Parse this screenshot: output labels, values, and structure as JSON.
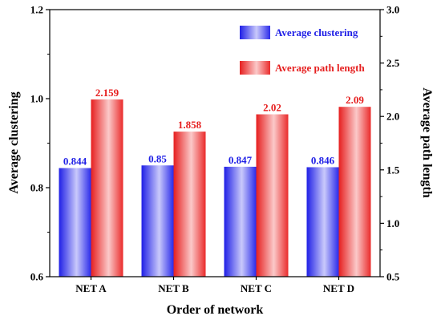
{
  "chart_data": {
    "type": "bar",
    "categories": [
      "NET A",
      "NET B",
      "NET C",
      "NET D"
    ],
    "xlabel": "Order of network",
    "ylabel_left": "Average clustering",
    "ylabel_right": "Average path length",
    "ylim_left": [
      0.6,
      1.2
    ],
    "ylim_right": [
      0.5,
      3.0
    ],
    "yticks_left": [
      "0.6",
      "0.8",
      "1.0",
      "1.2"
    ],
    "yticks_right": [
      "0.5",
      "1.0",
      "1.5",
      "2.0",
      "2.5",
      "3.0"
    ],
    "grid": false,
    "legend_position": "top-right",
    "series": [
      {
        "name": "Average clustering",
        "axis": "left",
        "color": "#1f1fe6",
        "values": [
          0.844,
          0.85,
          0.847,
          0.846
        ],
        "labels": [
          "0.844",
          "0.85",
          "0.847",
          "0.846"
        ]
      },
      {
        "name": "Average path length",
        "axis": "right",
        "color": "#e61f1f",
        "values": [
          2.159,
          1.858,
          2.02,
          2.09
        ],
        "labels": [
          "2.159",
          "1.858",
          "2.02",
          "2.09"
        ]
      }
    ]
  }
}
